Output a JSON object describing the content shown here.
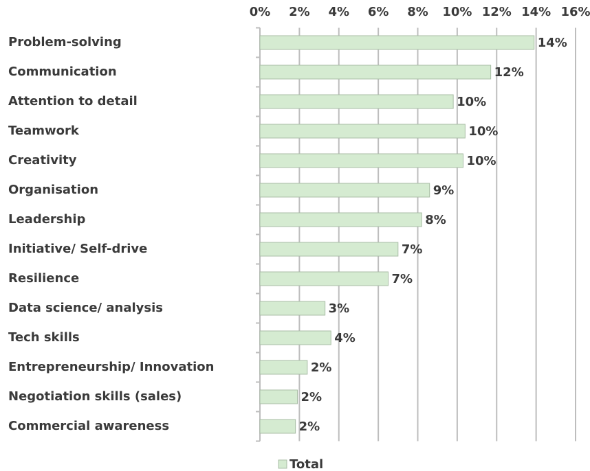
{
  "chart_data": {
    "type": "bar",
    "orientation": "horizontal",
    "categories": [
      "Problem-solving",
      "Communication",
      "Attention to detail",
      "Teamwork",
      "Creativity",
      "Organisation",
      "Leadership",
      "Initiative/ Self-drive",
      "Resilience",
      "Data science/ analysis",
      "Tech skills",
      "Entrepreneurship/ Innovation",
      "Negotiation skills (sales)",
      "Commercial awareness"
    ],
    "series": [
      {
        "name": "Total",
        "color": "#d5ebd1",
        "values": [
          13.9,
          11.7,
          9.8,
          10.4,
          10.3,
          8.6,
          8.2,
          7.0,
          6.5,
          3.3,
          3.6,
          2.4,
          1.9,
          1.8
        ],
        "value_labels": [
          "14%",
          "12%",
          "10%",
          "10%",
          "10%",
          "9%",
          "8%",
          "7%",
          "7%",
          "3%",
          "4%",
          "2%",
          "2%",
          "2%"
        ]
      }
    ],
    "xlim": [
      0,
      16
    ],
    "xticks": [
      {
        "value": 0,
        "label": "0%"
      },
      {
        "value": 2,
        "label": "2%"
      },
      {
        "value": 4,
        "label": "4%"
      },
      {
        "value": 6,
        "label": "6%"
      },
      {
        "value": 8,
        "label": "8%"
      },
      {
        "value": 10,
        "label": "10%"
      },
      {
        "value": 12,
        "label": "12%"
      },
      {
        "value": 14,
        "label": "14%"
      },
      {
        "value": 16,
        "label": "16%"
      }
    ],
    "grid": true,
    "legend": "bottom"
  }
}
